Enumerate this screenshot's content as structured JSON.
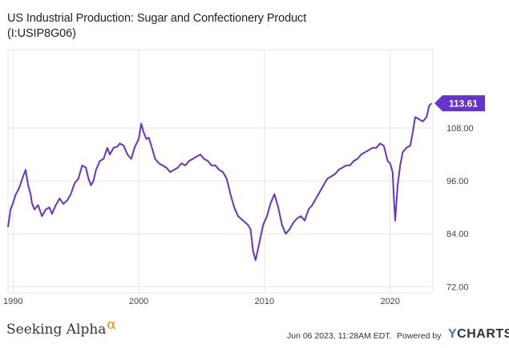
{
  "title_line1": "US Industrial Production: Sugar and Confectionery Product",
  "title_line2": "(I:USIP8G06)",
  "footer": {
    "brand_left": "Seeking Alpha",
    "brand_left_symbol": "α",
    "date": "Jun 06 2023, 11:28AM EDT.",
    "powered_by": "Powered by",
    "brand_right_y": "Y",
    "brand_right_rest": "CHARTS"
  },
  "colors": {
    "series": "#6633cc",
    "grid": "#e5e5e5",
    "axis_text": "#444444",
    "footer_alpha": "#f08c00",
    "ycharts_y": "#4a73c8"
  },
  "chart_data": {
    "type": "line",
    "title": "US Industrial Production: Sugar and Confectionery Product (I:USIP8G06)",
    "xlabel": "",
    "ylabel": "",
    "xlim": [
      1989.6,
      2023.4
    ],
    "ylim": [
      70.6,
      125.8
    ],
    "x_ticks": [
      1990,
      2000,
      2010,
      2020
    ],
    "x_tick_labels": [
      "1990",
      "2000",
      "2010",
      "2020"
    ],
    "y_ticks": [
      72,
      84,
      96,
      108
    ],
    "y_tick_labels": [
      "72.00",
      "84.00",
      "96.00",
      "108.00"
    ],
    "grid": true,
    "last_value_label": "113.61",
    "series": [
      {
        "x": [
          1989.6,
          1989.8,
          1990.0,
          1990.2,
          1990.5,
          1990.8,
          1991.0,
          1991.2,
          1991.4,
          1991.5,
          1991.7,
          1992.0,
          1992.3,
          1992.6,
          1992.9,
          1993.1,
          1993.4,
          1993.7,
          1994.0,
          1994.3,
          1994.6,
          1994.9,
          1995.2,
          1995.5,
          1995.8,
          1996.0,
          1996.2,
          1996.4,
          1996.6,
          1996.9,
          1997.2,
          1997.5,
          1997.7,
          1998.0,
          1998.3,
          1998.5,
          1998.8,
          1999.1,
          1999.4,
          1999.7,
          2000.0,
          2000.2,
          2000.4,
          2000.6,
          2000.8,
          2001.0,
          2001.3,
          2001.6,
          2001.9,
          2002.2,
          2002.5,
          2002.8,
          2003.1,
          2003.4,
          2003.7,
          2004.0,
          2004.3,
          2004.6,
          2004.9,
          2005.2,
          2005.5,
          2005.8,
          2006.1,
          2006.4,
          2006.7,
          2007.0,
          2007.3,
          2007.6,
          2007.9,
          2008.1,
          2008.3,
          2008.5,
          2008.7,
          2008.9,
          2009.1,
          2009.3,
          2009.6,
          2009.9,
          2010.2,
          2010.5,
          2010.8,
          2011.1,
          2011.4,
          2011.7,
          2012.0,
          2012.3,
          2012.6,
          2012.9,
          2013.2,
          2013.5,
          2013.8,
          2014.1,
          2014.4,
          2014.7,
          2015.0,
          2015.3,
          2015.6,
          2015.9,
          2016.2,
          2016.5,
          2016.8,
          2017.1,
          2017.4,
          2017.7,
          2018.0,
          2018.3,
          2018.6,
          2018.9,
          2019.2,
          2019.5,
          2019.8,
          2020.0,
          2020.2,
          2020.3,
          2020.4,
          2020.6,
          2020.8,
          2021.0,
          2021.3,
          2021.6,
          2021.8,
          2022.0,
          2022.3,
          2022.6,
          2022.9,
          2023.1,
          2023.3
        ],
        "values": [
          85.5,
          89.5,
          91.0,
          92.8,
          94.5,
          97.0,
          98.5,
          95.0,
          93.0,
          91.0,
          89.5,
          90.5,
          88.0,
          89.5,
          90.0,
          88.5,
          90.5,
          92.0,
          90.8,
          91.5,
          93.0,
          95.5,
          96.5,
          99.5,
          99.0,
          96.5,
          95.0,
          96.0,
          98.5,
          100.5,
          101.0,
          103.5,
          102.0,
          103.5,
          103.8,
          104.5,
          104.0,
          102.0,
          101.0,
          103.8,
          105.5,
          109.0,
          107.0,
          105.5,
          105.8,
          104.0,
          101.0,
          100.0,
          99.5,
          99.0,
          98.0,
          98.5,
          99.0,
          100.0,
          99.5,
          100.5,
          101.0,
          101.5,
          102.0,
          101.0,
          100.5,
          99.5,
          99.5,
          98.5,
          98.0,
          96.5,
          93.0,
          90.0,
          88.0,
          87.5,
          87.0,
          86.5,
          86.0,
          85.0,
          80.0,
          78.0,
          82.0,
          86.0,
          88.0,
          91.0,
          93.0,
          90.0,
          86.0,
          84.0,
          85.0,
          86.5,
          87.5,
          88.0,
          87.0,
          89.5,
          90.5,
          92.0,
          93.5,
          95.0,
          96.5,
          97.0,
          97.5,
          98.5,
          99.0,
          99.5,
          99.5,
          100.5,
          101.0,
          102.0,
          102.5,
          103.0,
          103.5,
          103.5,
          104.5,
          104.0,
          100.5,
          100.0,
          98.0,
          92.0,
          87.0,
          95.0,
          99.5,
          102.5,
          103.5,
          104.0,
          107.0,
          110.5,
          110.0,
          109.5,
          110.5,
          113.0,
          113.61
        ]
      }
    ]
  }
}
